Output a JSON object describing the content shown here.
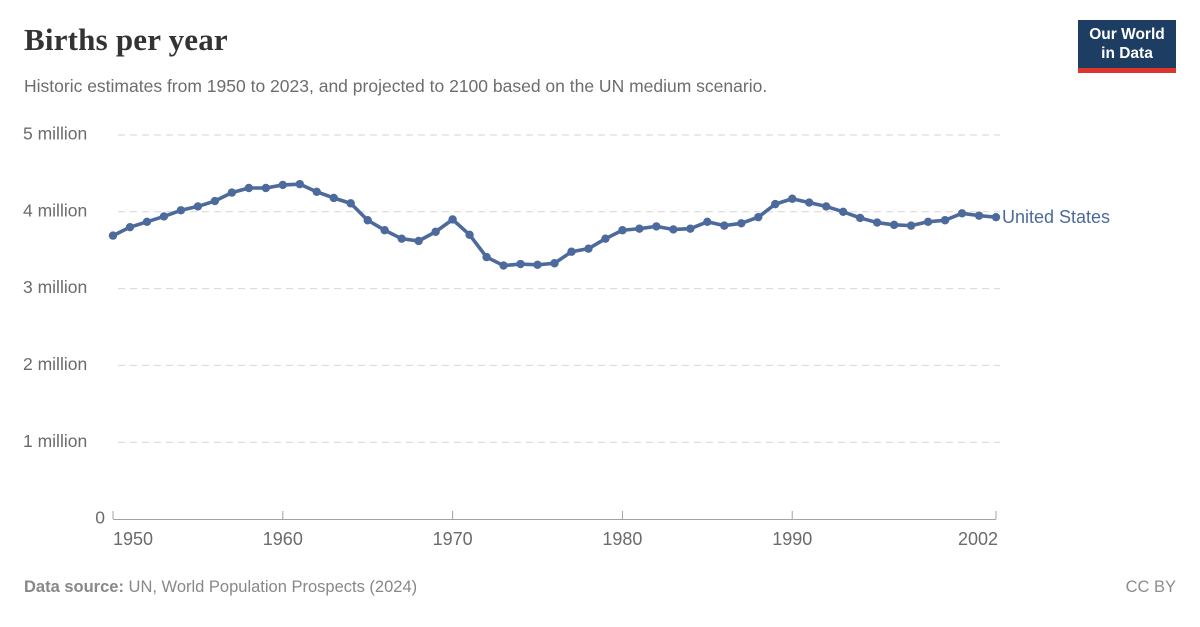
{
  "header": {
    "title": "Births per year",
    "subtitle": "Historic estimates from 1950 to 2023, and projected to 2100 based on the UN medium scenario.",
    "logo": {
      "line1": "Our World",
      "line2": "in Data",
      "bg_color": "#1d3d63",
      "stripe_color": "#dc352d"
    }
  },
  "chart_data": {
    "type": "line",
    "title": "Births per year",
    "unit": "million births per year",
    "grid": "horizontal dashed",
    "legend_position": "end-of-line label",
    "x_axis": {
      "min": 1950,
      "max": 2002,
      "ticks": [
        1950,
        1960,
        1970,
        1980,
        1990,
        2002
      ],
      "tick_labels": [
        "1950",
        "1960",
        "1970",
        "1980",
        "1990",
        "2002"
      ]
    },
    "y_axis": {
      "min": 0,
      "max": 5,
      "values": [
        0,
        1,
        2,
        3,
        4,
        5
      ],
      "labels": [
        "0",
        "1 million",
        "2 million",
        "3 million",
        "4 million",
        "5 million"
      ]
    },
    "series": [
      {
        "name": "United States",
        "color": "#4c6a9c",
        "x": [
          1950,
          1951,
          1952,
          1953,
          1954,
          1955,
          1956,
          1957,
          1958,
          1959,
          1960,
          1961,
          1962,
          1963,
          1964,
          1965,
          1966,
          1967,
          1968,
          1969,
          1970,
          1971,
          1972,
          1973,
          1974,
          1975,
          1976,
          1977,
          1978,
          1979,
          1980,
          1981,
          1982,
          1983,
          1984,
          1985,
          1986,
          1987,
          1988,
          1989,
          1990,
          1991,
          1992,
          1993,
          1994,
          1995,
          1996,
          1997,
          1998,
          1999,
          2000,
          2001,
          2002
        ],
        "values_million": [
          3.69,
          3.8,
          3.87,
          3.94,
          4.02,
          4.07,
          4.14,
          4.25,
          4.31,
          4.31,
          4.35,
          4.36,
          4.26,
          4.18,
          4.11,
          3.89,
          3.76,
          3.65,
          3.62,
          3.74,
          3.9,
          3.7,
          3.41,
          3.3,
          3.32,
          3.31,
          3.33,
          3.48,
          3.52,
          3.65,
          3.76,
          3.78,
          3.81,
          3.77,
          3.78,
          3.87,
          3.82,
          3.85,
          3.93,
          4.1,
          4.17,
          4.12,
          4.07,
          4.0,
          3.92,
          3.86,
          3.83,
          3.82,
          3.87,
          3.89,
          3.98,
          3.95,
          3.93
        ]
      }
    ]
  },
  "footer": {
    "source_label": "Data source:",
    "source_text": "UN, World Population Prospects (2024)",
    "license": "CC BY"
  }
}
